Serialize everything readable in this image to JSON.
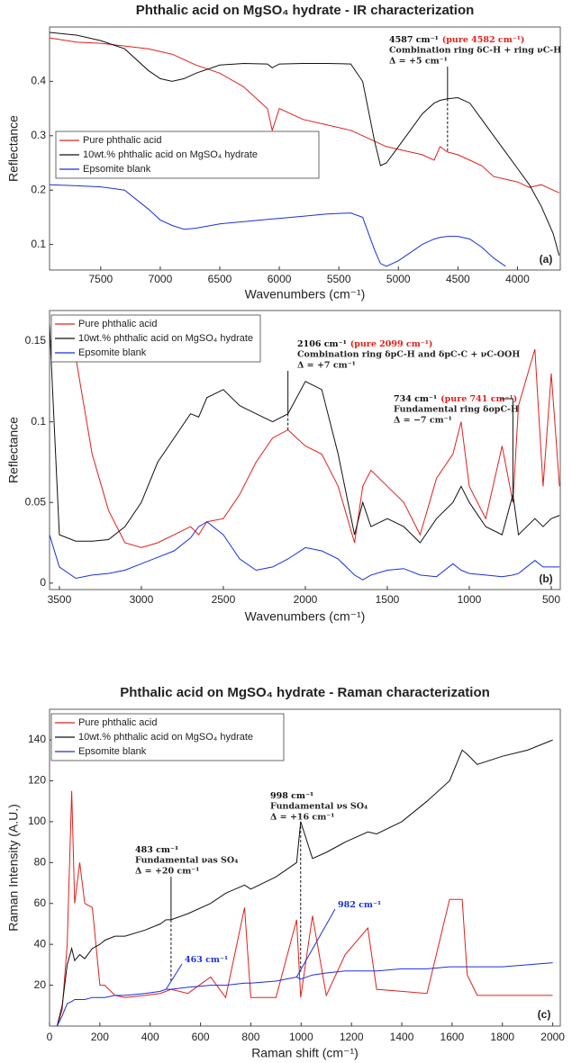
{
  "chart_data": [
    {
      "type": "line",
      "title": "Phthalic acid on MgSO₄ hydrate - IR characterization",
      "panel_label": "(a)",
      "x_label": "Wavenumbers (cm⁻¹)",
      "y_label": "Reflectance",
      "x": [
        7930,
        7700,
        7500,
        7300,
        7100,
        7000,
        6900,
        6800,
        6700,
        6500,
        6300,
        6100,
        6060,
        6000,
        5800,
        5600,
        5400,
        5300,
        5200,
        5150,
        5100,
        5000,
        4900,
        4800,
        4700,
        4650,
        4587,
        4500,
        4400,
        4300,
        4200,
        4100,
        4000,
        3900,
        3800,
        3700,
        3650
      ],
      "series": [
        {
          "name": "Pure phthalic acid",
          "color": "#e0201b",
          "values": [
            0.48,
            0.472,
            0.47,
            0.465,
            0.46,
            0.455,
            0.45,
            0.44,
            0.43,
            0.415,
            0.39,
            0.35,
            0.31,
            0.35,
            0.33,
            0.32,
            0.31,
            0.3,
            0.29,
            0.285,
            0.28,
            0.275,
            0.27,
            0.265,
            0.255,
            0.28,
            0.27,
            0.265,
            0.255,
            0.245,
            0.225,
            0.22,
            0.215,
            0.205,
            0.21,
            0.2,
            0.195
          ]
        },
        {
          "name": "10wt.% phthalic acid on MgSO₄ hydrate",
          "color": "#111111",
          "values": [
            0.49,
            0.485,
            0.475,
            0.46,
            0.42,
            0.405,
            0.4,
            0.405,
            0.415,
            0.43,
            0.433,
            0.432,
            0.425,
            0.432,
            0.433,
            0.433,
            0.432,
            0.4,
            0.29,
            0.245,
            0.25,
            0.28,
            0.31,
            0.34,
            0.36,
            0.365,
            0.368,
            0.37,
            0.36,
            0.33,
            0.3,
            0.27,
            0.24,
            0.21,
            0.17,
            0.12,
            0.08
          ]
        },
        {
          "name": "Epsomite blank",
          "color": "#1a2fe0",
          "values": [
            0.21,
            0.208,
            0.206,
            0.2,
            0.165,
            0.145,
            0.135,
            0.128,
            0.13,
            0.138,
            0.142,
            0.146,
            0.147,
            0.148,
            0.152,
            0.156,
            0.158,
            0.15,
            0.09,
            0.065,
            0.06,
            0.07,
            0.085,
            0.1,
            0.11,
            0.113,
            0.115,
            0.115,
            0.11,
            0.095,
            0.075,
            0.06,
            null,
            null,
            null,
            null,
            null
          ]
        }
      ],
      "xlim": [
        7930,
        3640
      ],
      "ylim": [
        0.053,
        0.5
      ],
      "xticks": [
        7500,
        7000,
        6500,
        6000,
        5500,
        5000,
        4500,
        4000
      ],
      "yticks": [
        0.1,
        0.2,
        0.3,
        0.4
      ],
      "legend": "left",
      "annotations": [
        {
          "x": 4587,
          "head": "4587 cm⁻¹",
          "pure": "(pure 4582 cm⁻¹)",
          "lines": [
            "Combination ring δC-H + ring νC-H",
            "Δ = +5 cm⁻¹"
          ]
        }
      ]
    },
    {
      "type": "line",
      "panel_label": "(b)",
      "x_label": "Wavenumbers (cm⁻¹)",
      "y_label": "Reflectance",
      "x": [
        3560,
        3500,
        3400,
        3300,
        3200,
        3100,
        3000,
        2900,
        2800,
        2700,
        2650,
        2600,
        2500,
        2400,
        2300,
        2200,
        2106,
        2000,
        1900,
        1800,
        1700,
        1650,
        1600,
        1500,
        1400,
        1300,
        1200,
        1100,
        1050,
        1000,
        900,
        800,
        734,
        700,
        600,
        550,
        500,
        450
      ],
      "series": [
        {
          "name": "Pure phthalic acid",
          "color": "#e0201b",
          "values": [
            null,
            null,
            0.14,
            0.08,
            0.045,
            0.025,
            0.022,
            0.025,
            0.03,
            0.035,
            0.03,
            0.038,
            0.04,
            0.055,
            0.075,
            0.09,
            0.095,
            0.085,
            0.08,
            0.06,
            0.025,
            0.06,
            0.07,
            0.06,
            0.05,
            0.03,
            0.065,
            0.08,
            0.1,
            0.06,
            0.04,
            0.085,
            0.05,
            0.11,
            0.145,
            0.06,
            0.13,
            0.06
          ]
        },
        {
          "name": "10wt.% phthalic acid on MgSO₄ hydrate",
          "color": "#111111",
          "values": [
            0.16,
            0.03,
            0.026,
            0.026,
            0.027,
            0.035,
            0.05,
            0.075,
            0.09,
            0.105,
            0.103,
            0.115,
            0.12,
            0.11,
            0.105,
            0.1,
            0.105,
            0.125,
            0.12,
            0.08,
            0.03,
            0.05,
            0.035,
            0.04,
            0.035,
            0.025,
            0.04,
            0.05,
            0.06,
            0.05,
            0.035,
            0.03,
            0.055,
            0.03,
            0.04,
            0.035,
            0.04,
            0.042
          ]
        },
        {
          "name": "Epsomite blank",
          "color": "#1a2fe0",
          "values": [
            0.03,
            0.01,
            0.003,
            0.005,
            0.006,
            0.008,
            0.012,
            0.016,
            0.02,
            0.028,
            0.035,
            0.038,
            0.03,
            0.015,
            0.008,
            0.01,
            0.015,
            0.022,
            0.02,
            0.015,
            0.005,
            0.002,
            0.005,
            0.008,
            0.009,
            0.005,
            0.004,
            0.012,
            0.008,
            0.006,
            0.005,
            0.004,
            0.005,
            0.006,
            0.014,
            0.01,
            0.01,
            0.01
          ]
        }
      ],
      "xlim": [
        3560,
        445
      ],
      "ylim": [
        -0.004,
        0.169
      ],
      "xticks": [
        3500,
        3000,
        2500,
        2000,
        1500,
        1000,
        500
      ],
      "yticks": [
        0,
        0.05,
        0.1,
        0.15
      ],
      "legend": "left",
      "annotations": [
        {
          "x": 2106,
          "head": "2106 cm⁻¹",
          "pure": "(pure 2099 cm⁻¹)",
          "lines": [
            "Combination ring δpC-H and δpC-C + νC-OOH",
            "Δ = +7 cm⁻¹"
          ]
        },
        {
          "x": 734,
          "head": "734 cm⁻¹",
          "pure": "(pure 741 cm⁻¹)",
          "lines": [
            "Fundamental ring δopC-H",
            "Δ = −7 cm⁻¹"
          ]
        }
      ]
    },
    {
      "type": "line",
      "title": "Phthalic acid on MgSO₄ hydrate - Raman characterization",
      "panel_label": "(c)",
      "x_label": "Raman shift (cm⁻¹)",
      "y_label": "Raman Intensity (A.U.)",
      "x": [
        10,
        30,
        50,
        70,
        88,
        100,
        120,
        140,
        170,
        200,
        220,
        260,
        300,
        380,
        440,
        463,
        483,
        550,
        640,
        700,
        775,
        800,
        900,
        982,
        998,
        1045,
        1100,
        1175,
        1265,
        1300,
        1400,
        1500,
        1590,
        1640,
        1660,
        1700,
        1800,
        1900,
        2000
      ],
      "series": [
        {
          "name": "Pure phthalic acid",
          "color": "#e0201b",
          "values": [
            0,
            0,
            8,
            40,
            115,
            60,
            80,
            60,
            58,
            20,
            20,
            15,
            14,
            15,
            16,
            17,
            18,
            16,
            24,
            14,
            58,
            14,
            14,
            52,
            14,
            54,
            15,
            35,
            48,
            18,
            17,
            16,
            62,
            62,
            25,
            15,
            15,
            15,
            15
          ]
        },
        {
          "name": "10wt.% phthalic acid on MgSO₄ hydrate",
          "color": "#111111",
          "values": [
            0,
            0,
            10,
            30,
            38,
            32,
            35,
            33,
            38,
            40,
            42,
            44,
            44,
            47,
            50,
            52,
            52,
            55,
            60,
            65,
            69,
            67,
            73,
            80,
            100,
            82,
            85,
            90,
            95,
            94,
            100,
            110,
            120,
            135,
            133,
            128,
            132,
            135,
            140
          ]
        },
        {
          "name": "Epsomite blank",
          "color": "#1a2fe0",
          "values": [
            0,
            0,
            5,
            11,
            12,
            13,
            13,
            13,
            14,
            14,
            14,
            15,
            15,
            16,
            17,
            18,
            18,
            19,
            20,
            20,
            21,
            21,
            22,
            24,
            23,
            25,
            26,
            27,
            27,
            27,
            28,
            28,
            29,
            29,
            29,
            29,
            29,
            30,
            31
          ]
        }
      ],
      "xlim": [
        0,
        2030
      ],
      "ylim": [
        0,
        155
      ],
      "xticks": [
        0,
        200,
        400,
        600,
        800,
        1000,
        1200,
        1400,
        1600,
        1800,
        2000
      ],
      "yticks": [
        20,
        40,
        60,
        80,
        100,
        120,
        140
      ],
      "legend": "left",
      "annotations": [
        {
          "x": 483,
          "head": "483 cm⁻¹",
          "lines": [
            "Fundamental νas SO₄",
            "Δ = +20 cm⁻¹"
          ]
        },
        {
          "x": 998,
          "head": "998 cm⁻¹",
          "lines": [
            "Fundamental νs SO₄",
            "Δ = +16 cm⁻¹"
          ]
        },
        {
          "x": 463,
          "head": "463 cm⁻¹",
          "color": "#1a2fe0"
        },
        {
          "x": 982,
          "head": "982 cm⁻¹",
          "color": "#1a2fe0"
        }
      ]
    }
  ]
}
